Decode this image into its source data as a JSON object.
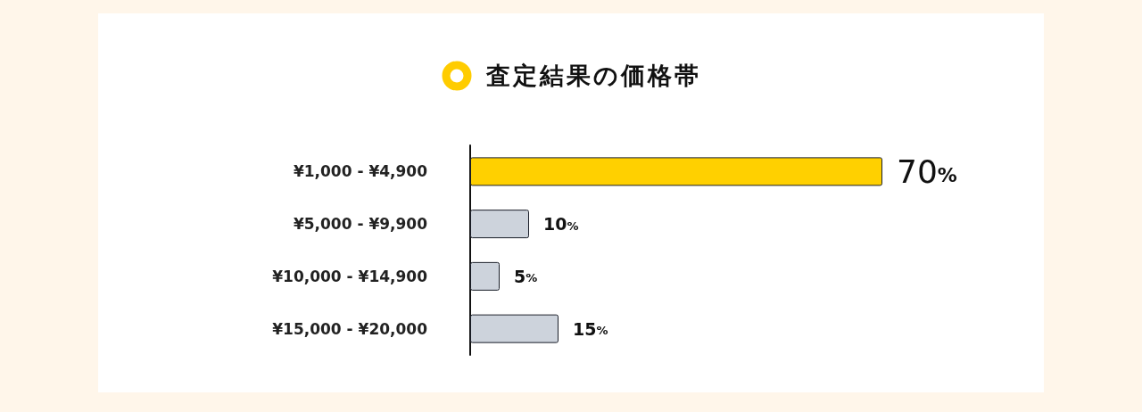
{
  "chart_data": {
    "type": "bar",
    "orientation": "horizontal",
    "title": "査定結果の価格帯",
    "categories": [
      "¥1,000 - ¥4,900",
      "¥5,000 - ¥9,900",
      "¥10,000 - ¥14,900",
      "¥15,000 - ¥20,000"
    ],
    "values": [
      70,
      10,
      5,
      15
    ],
    "colors": [
      "#ffd000",
      "#cdd3dc",
      "#cdd3dc",
      "#cdd3dc"
    ],
    "value_labels": [
      "70%",
      "10%",
      "5%",
      "15%"
    ],
    "grid": false
  }
}
